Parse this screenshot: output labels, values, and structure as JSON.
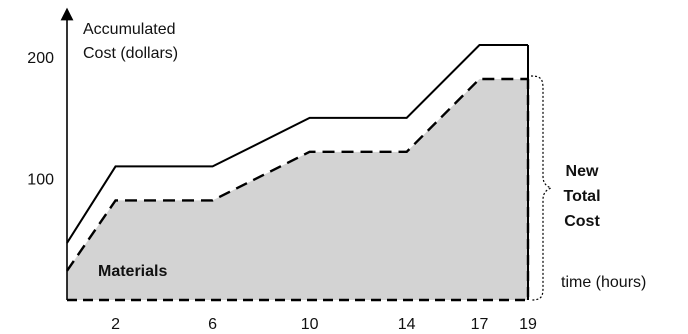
{
  "chart_data": {
    "type": "line",
    "ylabel_lines": [
      "Accumulated",
      "Cost (dollars)"
    ],
    "xlabel": "time (hours)",
    "x_ticks": [
      2,
      6,
      10,
      14,
      17,
      19
    ],
    "y_ticks": [
      100,
      200
    ],
    "xlim": [
      0,
      19
    ],
    "ylim": [
      0,
      210
    ],
    "series": [
      {
        "style": "solid",
        "points": [
          [
            0,
            47
          ],
          [
            2,
            110
          ],
          [
            6,
            110
          ],
          [
            10,
            150
          ],
          [
            14,
            150
          ],
          [
            17,
            210
          ],
          [
            19,
            210
          ]
        ]
      },
      {
        "style": "dashed",
        "fill": "#d3d3d3",
        "points": [
          [
            0,
            24
          ],
          [
            2,
            82
          ],
          [
            6,
            82
          ],
          [
            10,
            122
          ],
          [
            14,
            122
          ],
          [
            17,
            182
          ],
          [
            19,
            182
          ]
        ]
      }
    ],
    "annotations": {
      "materials": "Materials",
      "new_total_cost_lines": [
        "New",
        "Total",
        "Cost"
      ]
    }
  }
}
